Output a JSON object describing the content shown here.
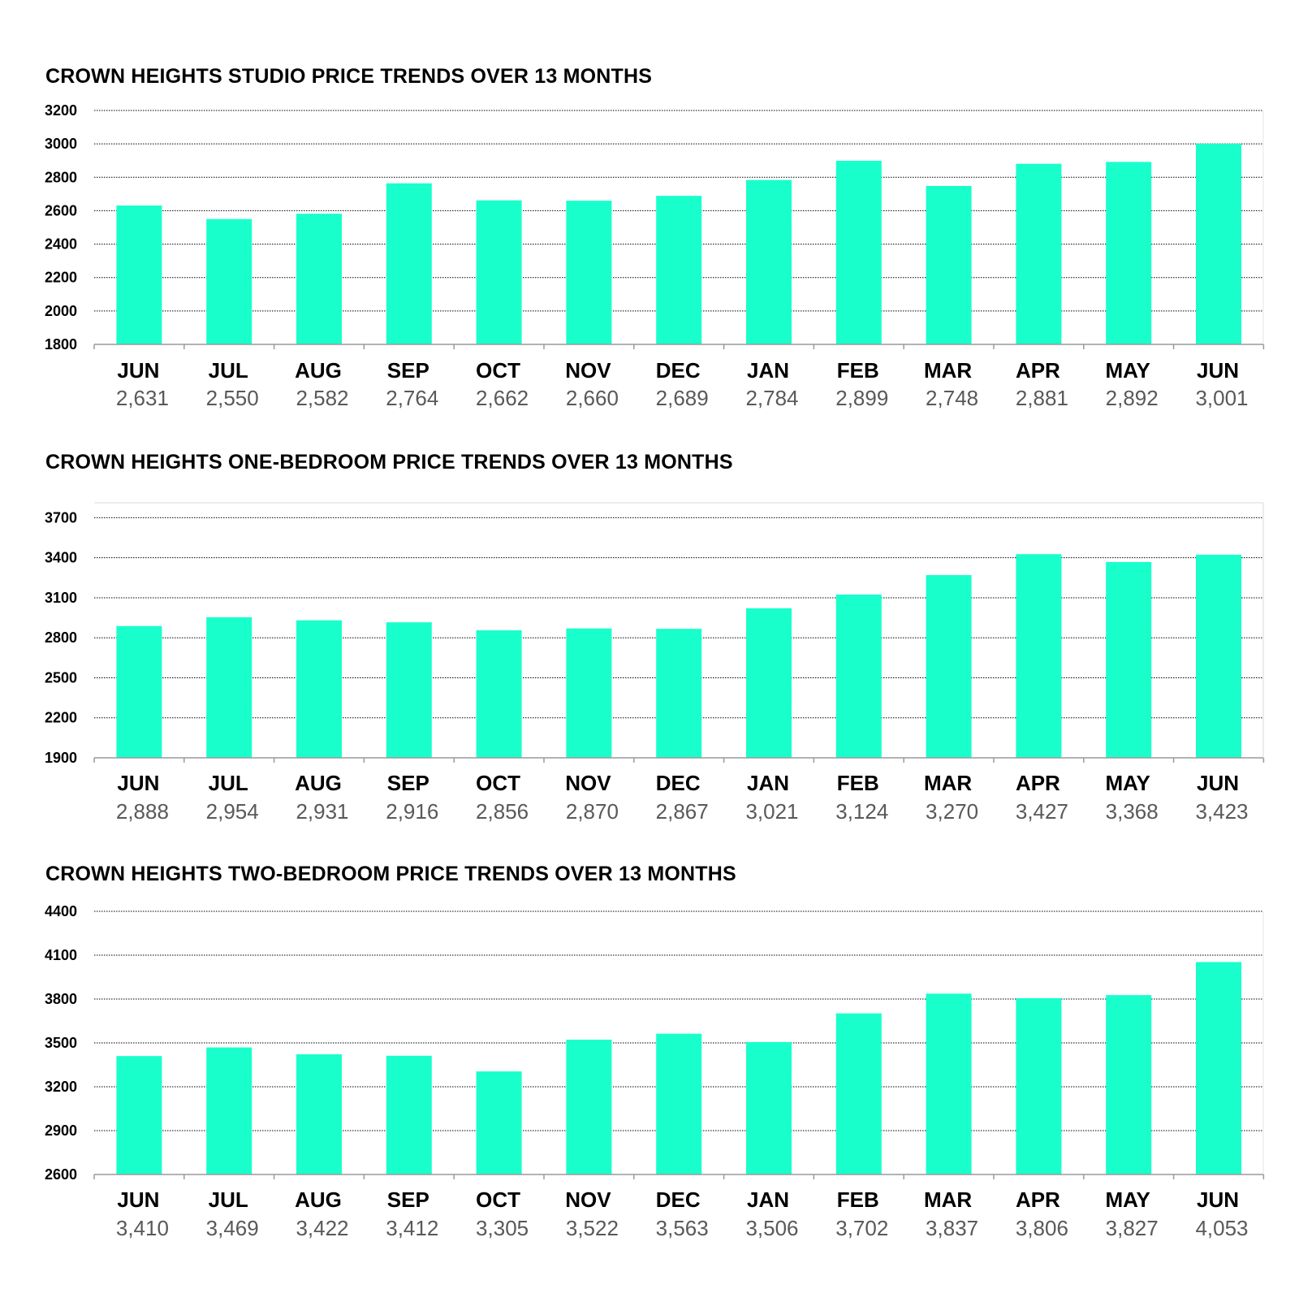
{
  "colors": {
    "bar": "#19FFCB",
    "grid": "#000000",
    "axis": "#9a9a9a",
    "tick_text": "#000000",
    "value_text": "#595959"
  },
  "chart_data": [
    {
      "type": "bar",
      "title": "CROWN HEIGHTS STUDIO PRICE TRENDS OVER 13 MONTHS",
      "categories": [
        "JUN",
        "JUL",
        "AUG",
        "SEP",
        "OCT",
        "NOV",
        "DEC",
        "JAN",
        "FEB",
        "MAR",
        "APR",
        "MAY",
        "JUN"
      ],
      "values": [
        2631,
        2550,
        2582,
        2764,
        2662,
        2660,
        2689,
        2784,
        2899,
        2748,
        2881,
        2892,
        3001
      ],
      "value_labels": [
        "2,631",
        "2,550",
        "2,582",
        "2,764",
        "2,662",
        "2,660",
        "2,689",
        "2,784",
        "2,899",
        "2,748",
        "2,881",
        "2,892",
        "3,001"
      ],
      "yticks": [
        "3200",
        "3000",
        "2800",
        "2600",
        "2400",
        "2200",
        "2000",
        "1800"
      ],
      "ylim": [
        1800,
        3200
      ],
      "grid": "dotted horizontal",
      "xlabel": "",
      "ylabel": ""
    },
    {
      "type": "bar",
      "title": "CROWN HEIGHTS ONE-BEDROOM PRICE TRENDS OVER 13 MONTHS",
      "categories": [
        "JUN",
        "JUL",
        "AUG",
        "SEP",
        "OCT",
        "NOV",
        "DEC",
        "JAN",
        "FEB",
        "MAR",
        "APR",
        "MAY",
        "JUN"
      ],
      "values": [
        2888,
        2954,
        2931,
        2916,
        2856,
        2870,
        2867,
        3021,
        3124,
        3270,
        3427,
        3368,
        3423
      ],
      "value_labels": [
        "2,888",
        "2,954",
        "2,931",
        "2,916",
        "2,856",
        "2,870",
        "2,867",
        "3,021",
        "3,124",
        "3,270",
        "3,427",
        "3,368",
        "3,423"
      ],
      "yticks": [
        "3700",
        "3400",
        "3100",
        "2800",
        "2500",
        "2200",
        "1900"
      ],
      "ylim": [
        1900,
        3800
      ],
      "grid": "dotted horizontal",
      "xlabel": "",
      "ylabel": ""
    },
    {
      "type": "bar",
      "title": "CROWN HEIGHTS TWO-BEDROOM PRICE TRENDS OVER 13 MONTHS",
      "categories": [
        "JUN",
        "JUL",
        "AUG",
        "SEP",
        "OCT",
        "NOV",
        "DEC",
        "JAN",
        "FEB",
        "MAR",
        "APR",
        "MAY",
        "JUN"
      ],
      "values": [
        3410,
        3469,
        3422,
        3412,
        3305,
        3522,
        3563,
        3506,
        3702,
        3837,
        3806,
        3827,
        4053
      ],
      "value_labels": [
        "3,410",
        "3,469",
        "3,422",
        "3,412",
        "3,305",
        "3,522",
        "3,563",
        "3,506",
        "3,702",
        "3,837",
        "3,806",
        "3,827",
        "4,053"
      ],
      "yticks": [
        "4400",
        "4100",
        "3800",
        "3500",
        "3200",
        "2900",
        "2600"
      ],
      "ylim": [
        2600,
        4400
      ],
      "grid": "dotted horizontal",
      "xlabel": "",
      "ylabel": ""
    }
  ]
}
